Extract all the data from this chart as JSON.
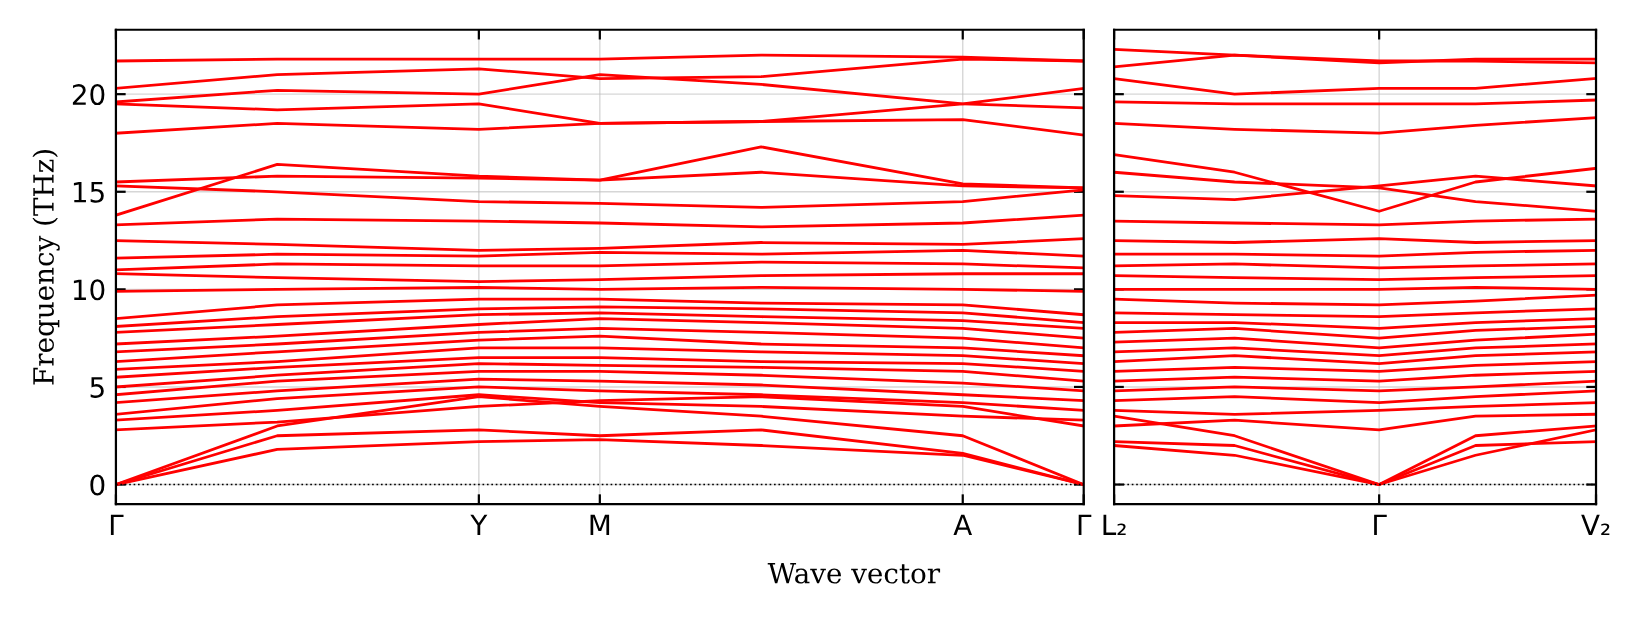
{
  "chart_data": [
    {
      "type": "line",
      "ylabel": "Frequency (THz)",
      "xlabel": "Wave vector",
      "color": "#ff0000",
      "marker": "none",
      "line_style": "solid",
      "grid": true,
      "categories": [
        "Γ",
        null,
        null,
        null,
        null,
        null,
        null,
        null,
        null,
        "Y",
        null,
        null,
        "M",
        null,
        null,
        null,
        null,
        null,
        null,
        null,
        null,
        "A",
        null,
        null,
        "Γ"
      ],
      "ylim": [
        -1,
        23.3
      ],
      "yticks": [
        0,
        5,
        10,
        15,
        20
      ],
      "ref_lines": [
        {
          "axis": "y",
          "value": 0,
          "color": "#000000",
          "line_style": "dotted"
        }
      ],
      "series": [
        {
          "values": [
            0,
            null,
            null,
            null,
            1.8,
            null,
            null,
            null,
            null,
            2.2,
            null,
            null,
            2.3,
            null,
            null,
            null,
            2.0,
            null,
            null,
            null,
            null,
            1.5,
            null,
            null,
            0
          ]
        },
        {
          "values": [
            0,
            null,
            null,
            null,
            2.5,
            null,
            null,
            null,
            null,
            2.8,
            null,
            null,
            2.5,
            null,
            null,
            null,
            2.8,
            null,
            null,
            null,
            null,
            1.6,
            null,
            null,
            0
          ]
        },
        {
          "values": [
            0,
            null,
            null,
            null,
            3.0,
            null,
            null,
            null,
            null,
            4.5,
            null,
            null,
            4.0,
            null,
            null,
            null,
            3.5,
            null,
            null,
            null,
            null,
            2.5,
            null,
            null,
            0
          ]
        },
        {
          "values": [
            2.8,
            null,
            null,
            null,
            3.2,
            null,
            null,
            null,
            null,
            4.0,
            null,
            null,
            4.3,
            null,
            null,
            null,
            4.5,
            null,
            null,
            null,
            null,
            4.0,
            null,
            null,
            3.0
          ]
        },
        {
          "values": [
            3.3,
            null,
            null,
            null,
            3.8,
            null,
            null,
            null,
            null,
            4.6,
            null,
            null,
            4.2,
            null,
            null,
            null,
            4.0,
            null,
            null,
            null,
            null,
            3.5,
            null,
            null,
            3.3
          ]
        },
        {
          "values": [
            3.6,
            null,
            null,
            null,
            4.4,
            null,
            null,
            null,
            null,
            5.0,
            null,
            null,
            4.8,
            null,
            null,
            null,
            4.6,
            null,
            null,
            null,
            null,
            4.2,
            null,
            null,
            3.8
          ]
        },
        {
          "values": [
            4.2,
            null,
            null,
            null,
            4.8,
            null,
            null,
            null,
            null,
            5.4,
            null,
            null,
            5.3,
            null,
            null,
            null,
            5.1,
            null,
            null,
            null,
            null,
            4.6,
            null,
            null,
            4.3
          ]
        },
        {
          "values": [
            4.6,
            null,
            null,
            null,
            5.3,
            null,
            null,
            null,
            null,
            5.8,
            null,
            null,
            5.8,
            null,
            null,
            null,
            5.6,
            null,
            null,
            null,
            null,
            5.2,
            null,
            null,
            4.8
          ]
        },
        {
          "values": [
            5.0,
            null,
            null,
            null,
            5.6,
            null,
            null,
            null,
            null,
            6.2,
            null,
            null,
            6.1,
            null,
            null,
            null,
            6.0,
            null,
            null,
            null,
            null,
            5.8,
            null,
            null,
            5.3
          ]
        },
        {
          "values": [
            5.5,
            null,
            null,
            null,
            6.0,
            null,
            null,
            null,
            null,
            6.5,
            null,
            null,
            6.5,
            null,
            null,
            null,
            6.3,
            null,
            null,
            null,
            null,
            6.2,
            null,
            null,
            5.8
          ]
        },
        {
          "values": [
            5.9,
            null,
            null,
            null,
            6.3,
            null,
            null,
            null,
            null,
            7.0,
            null,
            null,
            7.0,
            null,
            null,
            null,
            6.8,
            null,
            null,
            null,
            null,
            6.6,
            null,
            null,
            6.2
          ]
        },
        {
          "values": [
            6.3,
            null,
            null,
            null,
            6.8,
            null,
            null,
            null,
            null,
            7.4,
            null,
            null,
            7.6,
            null,
            null,
            null,
            7.2,
            null,
            null,
            null,
            null,
            7.0,
            null,
            null,
            6.6
          ]
        },
        {
          "values": [
            6.8,
            null,
            null,
            null,
            7.2,
            null,
            null,
            null,
            null,
            7.8,
            null,
            null,
            8.0,
            null,
            null,
            null,
            7.8,
            null,
            null,
            null,
            null,
            7.5,
            null,
            null,
            7.0
          ]
        },
        {
          "values": [
            7.2,
            null,
            null,
            null,
            7.6,
            null,
            null,
            null,
            null,
            8.2,
            null,
            null,
            8.5,
            null,
            null,
            null,
            8.3,
            null,
            null,
            null,
            null,
            8.0,
            null,
            null,
            7.5
          ]
        },
        {
          "values": [
            7.8,
            null,
            null,
            null,
            8.2,
            null,
            null,
            null,
            null,
            8.7,
            null,
            null,
            8.8,
            null,
            null,
            null,
            8.6,
            null,
            null,
            null,
            null,
            8.4,
            null,
            null,
            8.0
          ]
        },
        {
          "values": [
            8.1,
            null,
            null,
            null,
            8.6,
            null,
            null,
            null,
            null,
            9.0,
            null,
            null,
            9.1,
            null,
            null,
            null,
            9.0,
            null,
            null,
            null,
            null,
            8.8,
            null,
            null,
            8.3
          ]
        },
        {
          "values": [
            8.5,
            null,
            null,
            null,
            9.2,
            null,
            null,
            null,
            null,
            9.5,
            null,
            null,
            9.5,
            null,
            null,
            null,
            9.3,
            null,
            null,
            null,
            null,
            9.2,
            null,
            null,
            8.7
          ]
        },
        {
          "values": [
            9.9,
            null,
            null,
            null,
            10.0,
            null,
            null,
            null,
            null,
            10.1,
            null,
            null,
            10.0,
            null,
            null,
            null,
            10.1,
            null,
            null,
            null,
            null,
            10.0,
            null,
            null,
            9.9
          ]
        },
        {
          "values": [
            10.8,
            null,
            null,
            null,
            10.6,
            null,
            null,
            null,
            null,
            10.4,
            null,
            null,
            10.5,
            null,
            null,
            null,
            10.7,
            null,
            null,
            null,
            null,
            10.8,
            null,
            null,
            10.8
          ]
        },
        {
          "values": [
            11.0,
            null,
            null,
            null,
            11.3,
            null,
            null,
            null,
            null,
            11.2,
            null,
            null,
            11.2,
            null,
            null,
            null,
            11.4,
            null,
            null,
            null,
            null,
            11.3,
            null,
            null,
            11.1
          ]
        },
        {
          "values": [
            11.6,
            null,
            null,
            null,
            11.8,
            null,
            null,
            null,
            null,
            11.7,
            null,
            null,
            11.9,
            null,
            null,
            null,
            11.8,
            null,
            null,
            null,
            null,
            12.0,
            null,
            null,
            11.7
          ]
        },
        {
          "values": [
            12.5,
            null,
            null,
            null,
            12.3,
            null,
            null,
            null,
            null,
            12.0,
            null,
            null,
            12.1,
            null,
            null,
            null,
            12.4,
            null,
            null,
            null,
            null,
            12.3,
            null,
            null,
            12.6
          ]
        },
        {
          "values": [
            13.3,
            null,
            null,
            null,
            13.6,
            null,
            null,
            null,
            null,
            13.5,
            null,
            null,
            13.4,
            null,
            null,
            null,
            13.2,
            null,
            null,
            null,
            null,
            13.4,
            null,
            null,
            13.8
          ]
        },
        {
          "values": [
            13.8,
            null,
            null,
            null,
            16.4,
            null,
            null,
            null,
            null,
            15.8,
            null,
            null,
            15.6,
            null,
            null,
            null,
            17.3,
            null,
            null,
            null,
            null,
            15.4,
            null,
            null,
            15.2
          ]
        },
        {
          "values": [
            15.5,
            null,
            null,
            null,
            15.8,
            null,
            null,
            null,
            null,
            15.7,
            null,
            null,
            15.6,
            null,
            null,
            null,
            16.0,
            null,
            null,
            null,
            null,
            15.3,
            null,
            null,
            15.2
          ]
        },
        {
          "values": [
            15.3,
            null,
            null,
            null,
            15.0,
            null,
            null,
            null,
            null,
            14.5,
            null,
            null,
            14.4,
            null,
            null,
            null,
            14.2,
            null,
            null,
            null,
            null,
            14.5,
            null,
            null,
            15.1
          ]
        },
        {
          "values": [
            18.0,
            null,
            null,
            null,
            18.5,
            null,
            null,
            null,
            null,
            18.2,
            null,
            null,
            18.5,
            null,
            null,
            null,
            18.6,
            null,
            null,
            null,
            null,
            18.7,
            null,
            null,
            17.9
          ]
        },
        {
          "values": [
            19.5,
            null,
            null,
            null,
            19.2,
            null,
            null,
            null,
            null,
            19.5,
            null,
            null,
            18.5,
            null,
            null,
            null,
            18.6,
            null,
            null,
            null,
            null,
            19.5,
            null,
            null,
            20.3
          ]
        },
        {
          "values": [
            19.6,
            null,
            null,
            null,
            20.2,
            null,
            null,
            null,
            null,
            20.0,
            null,
            null,
            21.0,
            null,
            null,
            null,
            20.5,
            null,
            null,
            null,
            null,
            19.5,
            null,
            null,
            19.3
          ]
        },
        {
          "values": [
            20.3,
            null,
            null,
            null,
            21.0,
            null,
            null,
            null,
            null,
            21.3,
            null,
            null,
            20.8,
            null,
            null,
            null,
            20.9,
            null,
            null,
            null,
            null,
            21.8,
            null,
            null,
            21.7
          ]
        },
        {
          "values": [
            21.7,
            null,
            null,
            null,
            21.8,
            null,
            null,
            null,
            null,
            21.8,
            null,
            null,
            21.8,
            null,
            null,
            null,
            22.0,
            null,
            null,
            null,
            null,
            21.9,
            null,
            null,
            21.7
          ]
        }
      ]
    },
    {
      "type": "line",
      "color": "#ff0000",
      "marker": "none",
      "line_style": "solid",
      "grid": true,
      "tick_labels": "x",
      "categories": [
        "L₂",
        null,
        null,
        null,
        null,
        null,
        null,
        null,
        null,
        null,
        null,
        "Γ",
        null,
        null,
        null,
        null,
        null,
        null,
        null,
        null,
        "V₂"
      ],
      "ylim": [
        -1,
        23.3
      ],
      "yticks": [
        0,
        5,
        10,
        15,
        20
      ],
      "ref_lines": [
        {
          "axis": "y",
          "value": 0,
          "color": "#000000",
          "line_style": "dotted"
        }
      ],
      "series": [
        {
          "values": [
            2.0,
            null,
            null,
            null,
            null,
            1.5,
            null,
            null,
            null,
            null,
            null,
            0,
            null,
            null,
            null,
            1.5,
            null,
            null,
            null,
            null,
            2.8
          ]
        },
        {
          "values": [
            2.2,
            null,
            null,
            null,
            null,
            2.0,
            null,
            null,
            null,
            null,
            null,
            0,
            null,
            null,
            null,
            2.0,
            null,
            null,
            null,
            null,
            2.2
          ]
        },
        {
          "values": [
            3.5,
            null,
            null,
            null,
            null,
            2.5,
            null,
            null,
            null,
            null,
            null,
            0,
            null,
            null,
            null,
            2.5,
            null,
            null,
            null,
            null,
            3.0
          ]
        },
        {
          "values": [
            3.0,
            null,
            null,
            null,
            null,
            3.3,
            null,
            null,
            null,
            null,
            null,
            2.8,
            null,
            null,
            null,
            3.5,
            null,
            null,
            null,
            null,
            3.6
          ]
        },
        {
          "values": [
            3.8,
            null,
            null,
            null,
            null,
            3.6,
            null,
            null,
            null,
            null,
            null,
            3.8,
            null,
            null,
            null,
            4.0,
            null,
            null,
            null,
            null,
            4.2
          ]
        },
        {
          "values": [
            4.3,
            null,
            null,
            null,
            null,
            4.5,
            null,
            null,
            null,
            null,
            null,
            4.2,
            null,
            null,
            null,
            4.5,
            null,
            null,
            null,
            null,
            4.8
          ]
        },
        {
          "values": [
            4.8,
            null,
            null,
            null,
            null,
            5.0,
            null,
            null,
            null,
            null,
            null,
            4.8,
            null,
            null,
            null,
            5.0,
            null,
            null,
            null,
            null,
            5.3
          ]
        },
        {
          "values": [
            5.3,
            null,
            null,
            null,
            null,
            5.5,
            null,
            null,
            null,
            null,
            null,
            5.3,
            null,
            null,
            null,
            5.6,
            null,
            null,
            null,
            null,
            5.8
          ]
        },
        {
          "values": [
            5.8,
            null,
            null,
            null,
            null,
            6.0,
            null,
            null,
            null,
            null,
            null,
            5.8,
            null,
            null,
            null,
            6.1,
            null,
            null,
            null,
            null,
            6.3
          ]
        },
        {
          "values": [
            6.3,
            null,
            null,
            null,
            null,
            6.6,
            null,
            null,
            null,
            null,
            null,
            6.2,
            null,
            null,
            null,
            6.6,
            null,
            null,
            null,
            null,
            6.8
          ]
        },
        {
          "values": [
            6.8,
            null,
            null,
            null,
            null,
            7.0,
            null,
            null,
            null,
            null,
            null,
            6.6,
            null,
            null,
            null,
            7.0,
            null,
            null,
            null,
            null,
            7.2
          ]
        },
        {
          "values": [
            7.3,
            null,
            null,
            null,
            null,
            7.5,
            null,
            null,
            null,
            null,
            null,
            7.0,
            null,
            null,
            null,
            7.4,
            null,
            null,
            null,
            null,
            7.7
          ]
        },
        {
          "values": [
            7.8,
            null,
            null,
            null,
            null,
            8.0,
            null,
            null,
            null,
            null,
            null,
            7.5,
            null,
            null,
            null,
            7.9,
            null,
            null,
            null,
            null,
            8.1
          ]
        },
        {
          "values": [
            8.3,
            null,
            null,
            null,
            null,
            8.3,
            null,
            null,
            null,
            null,
            null,
            8.0,
            null,
            null,
            null,
            8.3,
            null,
            null,
            null,
            null,
            8.5
          ]
        },
        {
          "values": [
            8.8,
            null,
            null,
            null,
            null,
            8.7,
            null,
            null,
            null,
            null,
            null,
            8.6,
            null,
            null,
            null,
            8.8,
            null,
            null,
            null,
            null,
            9.0
          ]
        },
        {
          "values": [
            9.5,
            null,
            null,
            null,
            null,
            9.3,
            null,
            null,
            null,
            null,
            null,
            9.2,
            null,
            null,
            null,
            9.4,
            null,
            null,
            null,
            null,
            9.7
          ]
        },
        {
          "values": [
            10.0,
            null,
            null,
            null,
            null,
            10.0,
            null,
            null,
            null,
            null,
            null,
            10.0,
            null,
            null,
            null,
            10.1,
            null,
            null,
            null,
            null,
            10.0
          ]
        },
        {
          "values": [
            10.7,
            null,
            null,
            null,
            null,
            10.6,
            null,
            null,
            null,
            null,
            null,
            10.5,
            null,
            null,
            null,
            10.6,
            null,
            null,
            null,
            null,
            10.7
          ]
        },
        {
          "values": [
            11.2,
            null,
            null,
            null,
            null,
            11.3,
            null,
            null,
            null,
            null,
            null,
            11.1,
            null,
            null,
            null,
            11.2,
            null,
            null,
            null,
            null,
            11.3
          ]
        },
        {
          "values": [
            11.8,
            null,
            null,
            null,
            null,
            11.8,
            null,
            null,
            null,
            null,
            null,
            11.7,
            null,
            null,
            null,
            11.9,
            null,
            null,
            null,
            null,
            12.0
          ]
        },
        {
          "values": [
            12.5,
            null,
            null,
            null,
            null,
            12.4,
            null,
            null,
            null,
            null,
            null,
            12.6,
            null,
            null,
            null,
            12.4,
            null,
            null,
            null,
            null,
            12.5
          ]
        },
        {
          "values": [
            13.5,
            null,
            null,
            null,
            null,
            13.4,
            null,
            null,
            null,
            null,
            null,
            13.3,
            null,
            null,
            null,
            13.5,
            null,
            null,
            null,
            null,
            13.6
          ]
        },
        {
          "values": [
            16.9,
            null,
            null,
            null,
            null,
            16.0,
            null,
            null,
            null,
            null,
            null,
            14.0,
            null,
            null,
            null,
            15.5,
            null,
            null,
            null,
            null,
            16.2
          ]
        },
        {
          "values": [
            16.0,
            null,
            null,
            null,
            null,
            15.5,
            null,
            null,
            null,
            null,
            null,
            15.2,
            null,
            null,
            null,
            14.5,
            null,
            null,
            null,
            null,
            14.0
          ]
        },
        {
          "values": [
            14.8,
            null,
            null,
            null,
            null,
            14.6,
            null,
            null,
            null,
            null,
            null,
            15.3,
            null,
            null,
            null,
            15.8,
            null,
            null,
            null,
            null,
            15.3
          ]
        },
        {
          "values": [
            18.5,
            null,
            null,
            null,
            null,
            18.2,
            null,
            null,
            null,
            null,
            null,
            18.0,
            null,
            null,
            null,
            18.4,
            null,
            null,
            null,
            null,
            18.8
          ]
        },
        {
          "values": [
            19.6,
            null,
            null,
            null,
            null,
            19.5,
            null,
            null,
            null,
            null,
            null,
            19.5,
            null,
            null,
            null,
            19.5,
            null,
            null,
            null,
            null,
            19.7
          ]
        },
        {
          "values": [
            20.8,
            null,
            null,
            null,
            null,
            20.0,
            null,
            null,
            null,
            null,
            null,
            20.3,
            null,
            null,
            null,
            20.3,
            null,
            null,
            null,
            null,
            20.8
          ]
        },
        {
          "values": [
            21.4,
            null,
            null,
            null,
            null,
            22.0,
            null,
            null,
            null,
            null,
            null,
            21.6,
            null,
            null,
            null,
            21.8,
            null,
            null,
            null,
            null,
            21.8
          ]
        },
        {
          "values": [
            22.3,
            null,
            null,
            null,
            null,
            22.0,
            null,
            null,
            null,
            null,
            null,
            21.7,
            null,
            null,
            null,
            21.7,
            null,
            null,
            null,
            null,
            21.6
          ]
        }
      ]
    }
  ]
}
